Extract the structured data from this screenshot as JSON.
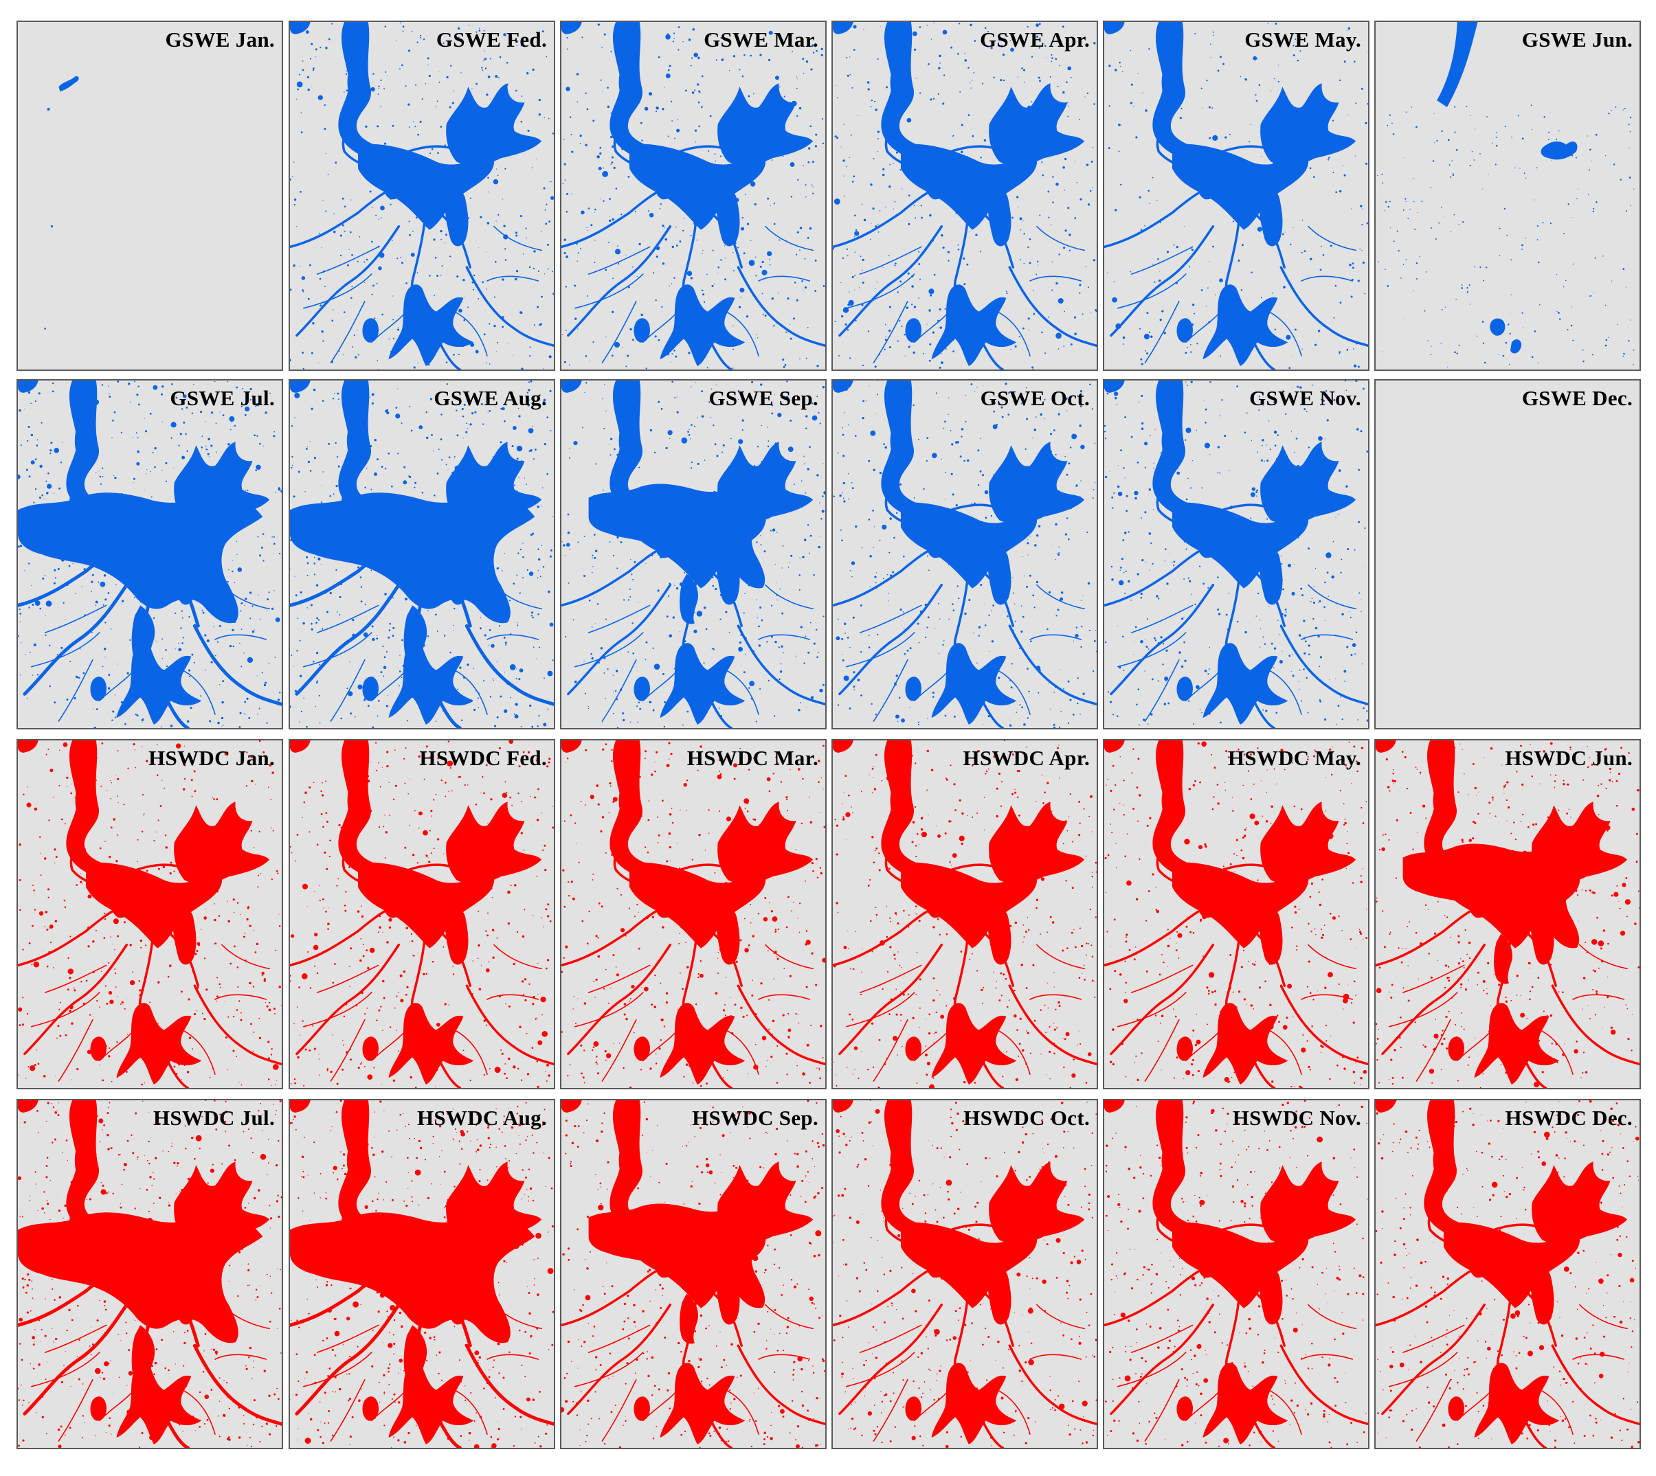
{
  "figure": {
    "colors": {
      "panel_background": "#e2e2e2",
      "panel_border": "#5a5a5a",
      "gswe_water": "#0a64e6",
      "hswdc_water": "#ff0000",
      "label_text": "#000000"
    },
    "rows": [
      {
        "dataset": "GSWE",
        "color": "#0a64e6",
        "panels": [
          {
            "label": "GSWE Jan.",
            "extent": "trace"
          },
          {
            "label": "GSWE Fed.",
            "extent": "medium"
          },
          {
            "label": "GSWE Mar.",
            "extent": "medium"
          },
          {
            "label": "GSWE Apr.",
            "extent": "medium"
          },
          {
            "label": "GSWE May.",
            "extent": "partial"
          },
          {
            "label": "GSWE Jun.",
            "extent": "sparse"
          }
        ]
      },
      {
        "dataset": "GSWE",
        "color": "#0a64e6",
        "panels": [
          {
            "label": "GSWE Jul.",
            "extent": "large"
          },
          {
            "label": "GSWE Aug.",
            "extent": "large"
          },
          {
            "label": "GSWE Sep.",
            "extent": "medium-large"
          },
          {
            "label": "GSWE Oct.",
            "extent": "medium"
          },
          {
            "label": "GSWE Nov.",
            "extent": "medium"
          },
          {
            "label": "GSWE Dec.",
            "extent": "none"
          }
        ]
      },
      {
        "dataset": "HSWDC",
        "color": "#ff0000",
        "panels": [
          {
            "label": "HSWDC Jan.",
            "extent": "medium"
          },
          {
            "label": "HSWDC Fed.",
            "extent": "medium"
          },
          {
            "label": "HSWDC Mar.",
            "extent": "medium"
          },
          {
            "label": "HSWDC Apr.",
            "extent": "medium"
          },
          {
            "label": "HSWDC May.",
            "extent": "medium"
          },
          {
            "label": "HSWDC Jun.",
            "extent": "medium-large"
          }
        ]
      },
      {
        "dataset": "HSWDC",
        "color": "#ff0000",
        "panels": [
          {
            "label": "HSWDC Jul.",
            "extent": "large"
          },
          {
            "label": "HSWDC Aug.",
            "extent": "large"
          },
          {
            "label": "HSWDC Sep.",
            "extent": "medium-large"
          },
          {
            "label": "HSWDC Oct.",
            "extent": "medium"
          },
          {
            "label": "HSWDC Nov.",
            "extent": "medium"
          },
          {
            "label": "HSWDC Dec.",
            "extent": "medium"
          }
        ]
      }
    ]
  }
}
